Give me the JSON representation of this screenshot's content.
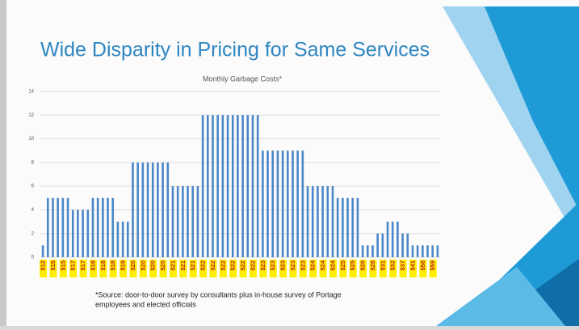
{
  "title": "Wide Disparity in Pricing for Same Services",
  "footnote": [
    "*Source: door-to-door survey by consultants plus in-house survey of Portage",
    "employees and elected officials"
  ],
  "chart_data": {
    "type": "bar",
    "title": "Monthly Garbage Costs*",
    "color": "#4a86c8",
    "grid": true,
    "ylim": [
      0,
      14
    ],
    "yticks": [
      0,
      2,
      4,
      6,
      8,
      10,
      12,
      14
    ],
    "categories": [
      "$12",
      null,
      "$15",
      null,
      "$15",
      null,
      "$17",
      null,
      "$17",
      null,
      "$18",
      null,
      "$18",
      null,
      "$18",
      null,
      "$19",
      null,
      "$20",
      null,
      "$20",
      null,
      "$20",
      null,
      "$20",
      null,
      "$21",
      null,
      "$21",
      null,
      "$21",
      null,
      "$22",
      null,
      "$22",
      null,
      "$22",
      null,
      "$22",
      null,
      "$22",
      null,
      "$22",
      null,
      "$23",
      null,
      "$23",
      null,
      "$23",
      null,
      "$23",
      null,
      "$23",
      null,
      "$24",
      null,
      "$24",
      null,
      "$24",
      null,
      "$25",
      null,
      "$25",
      null,
      "$26",
      null,
      "$28",
      null,
      "$31",
      null,
      "$32",
      null,
      "$37",
      null,
      "$41",
      null,
      "$58",
      null,
      "$59",
      null
    ],
    "values": [
      1,
      5,
      5,
      5,
      5,
      5,
      4,
      4,
      4,
      4,
      5,
      5,
      5,
      5,
      5,
      3,
      3,
      3,
      8,
      8,
      8,
      8,
      8,
      8,
      8,
      8,
      6,
      6,
      6,
      6,
      6,
      6,
      12,
      12,
      12,
      12,
      12,
      12,
      12,
      12,
      12,
      12,
      12,
      12,
      9,
      9,
      9,
      9,
      9,
      9,
      9,
      9,
      9,
      6,
      6,
      6,
      6,
      6,
      6,
      5,
      5,
      5,
      5,
      5,
      1,
      1,
      1,
      2,
      2,
      3,
      3,
      3,
      2,
      2,
      1,
      1,
      1,
      1,
      1,
      1
    ]
  }
}
